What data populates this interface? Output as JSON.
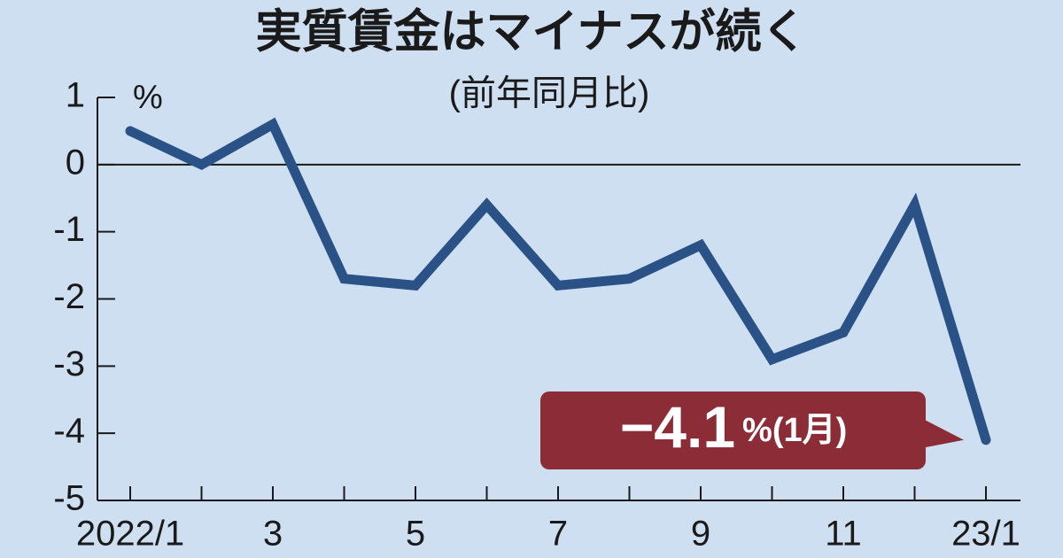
{
  "chart_data": {
    "type": "line",
    "title": "実質賃金はマイナスが続く",
    "subtitle": "(前年同月比)",
    "y_unit": "%",
    "categories": [
      "2022/1",
      null,
      "3",
      null,
      "5",
      null,
      "7",
      null,
      "9",
      null,
      "11",
      null,
      "23/1"
    ],
    "series": [
      {
        "name": "実質賃金",
        "color": "#2a5286",
        "values": [
          0.5,
          0,
          0.6,
          -1.7,
          -1.8,
          -0.6,
          -1.8,
          -1.7,
          -1.2,
          -2.9,
          -2.5,
          -0.6,
          -4.1
        ]
      }
    ],
    "ylim": [
      -5,
      1
    ],
    "yticks": [
      -5,
      -4,
      -3,
      -2,
      -1,
      0,
      1
    ],
    "zero_line": true,
    "legend": false,
    "annotation": {
      "main": "−4.1",
      "suffix": "%(1月)",
      "color": "#8b2c37"
    }
  }
}
